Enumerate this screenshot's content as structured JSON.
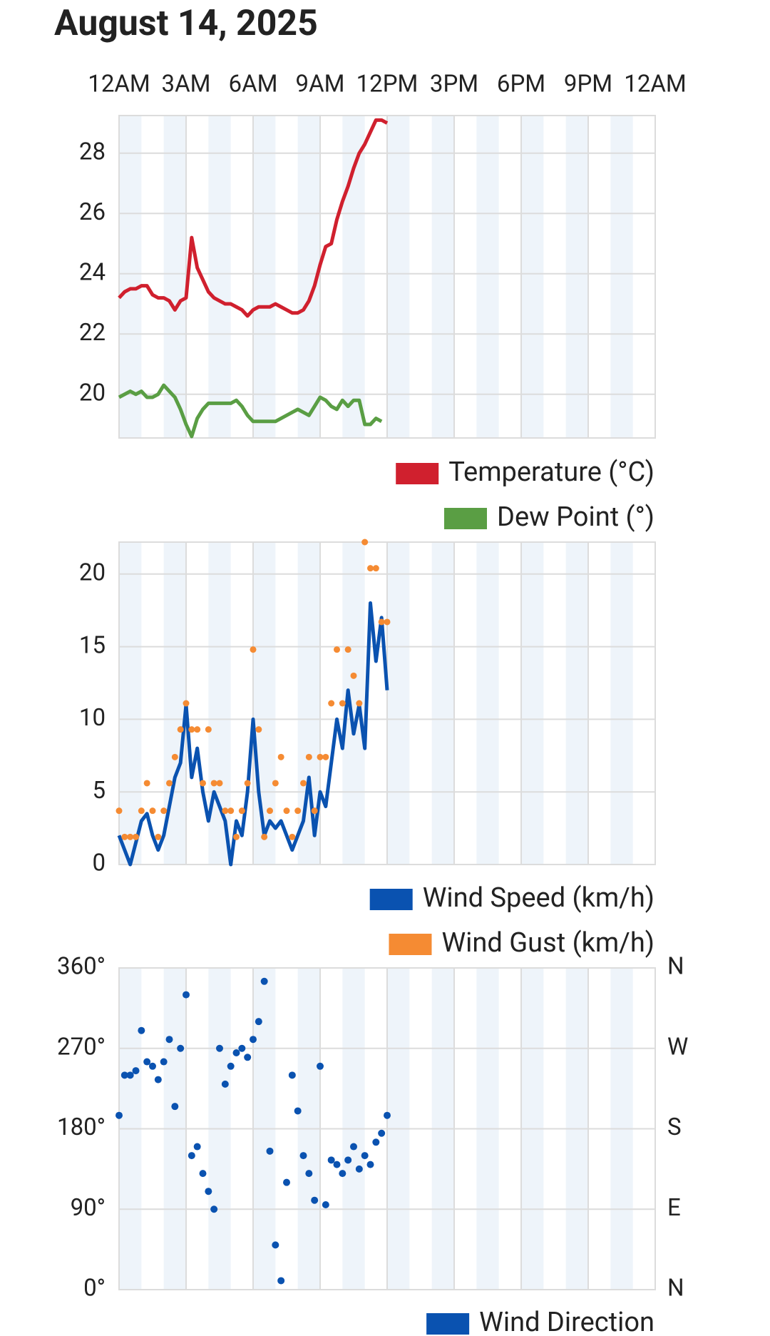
{
  "title": "August 14, 2025",
  "chart_data": [
    {
      "type": "line",
      "xlim": [
        0,
        24
      ],
      "xticks": [
        {
          "value": 0,
          "label": "12AM"
        },
        {
          "value": 3,
          "label": "3AM"
        },
        {
          "value": 6,
          "label": "6AM"
        },
        {
          "value": 9,
          "label": "9AM"
        },
        {
          "value": 12,
          "label": "12PM"
        },
        {
          "value": 15,
          "label": "3PM"
        },
        {
          "value": 18,
          "label": "6PM"
        },
        {
          "value": 21,
          "label": "9PM"
        },
        {
          "value": 24,
          "label": "12AM"
        }
      ],
      "ylim": [
        18.55,
        29.25
      ],
      "yticks": [
        20,
        22,
        24,
        26,
        28
      ],
      "grid": true,
      "x": [
        0,
        0.25,
        0.5,
        0.75,
        1,
        1.25,
        1.5,
        1.75,
        2,
        2.25,
        2.5,
        2.75,
        3,
        3.25,
        3.5,
        3.75,
        4,
        4.25,
        4.5,
        4.75,
        5,
        5.25,
        5.5,
        5.75,
        6,
        6.25,
        6.5,
        6.75,
        7,
        7.25,
        7.5,
        7.75,
        8,
        8.25,
        8.5,
        8.75,
        9,
        9.25,
        9.5,
        9.75,
        10,
        10.25,
        10.5,
        10.75,
        11,
        11.25,
        11.5,
        11.75,
        12
      ],
      "series": [
        {
          "name": "Temperature (°C)",
          "color": "#d0202e",
          "values": [
            23.2,
            23.4,
            23.5,
            23.5,
            23.6,
            23.6,
            23.3,
            23.2,
            23.2,
            23.1,
            22.8,
            23.1,
            23.2,
            25.2,
            24.2,
            23.8,
            23.4,
            23.2,
            23.1,
            23.0,
            23.0,
            22.9,
            22.8,
            22.6,
            22.8,
            22.9,
            22.9,
            22.9,
            23.0,
            22.9,
            22.8,
            22.7,
            22.7,
            22.8,
            23.1,
            23.6,
            24.3,
            24.9,
            25.0,
            25.8,
            26.4,
            26.9,
            27.5,
            28.0,
            28.3,
            28.7,
            29.1,
            29.1,
            29.0
          ]
        },
        {
          "name": "Dew Point (°)",
          "color": "#5a9e44",
          "values": [
            19.9,
            20.0,
            20.1,
            20.0,
            20.1,
            19.9,
            19.9,
            20.0,
            20.3,
            20.1,
            19.9,
            19.5,
            19.0,
            18.6,
            19.2,
            19.5,
            19.7,
            19.7,
            19.7,
            19.7,
            19.7,
            19.8,
            19.6,
            19.3,
            19.1,
            19.1,
            19.1,
            19.1,
            19.1,
            19.2,
            19.3,
            19.4,
            19.5,
            19.4,
            19.3,
            19.6,
            19.9,
            19.8,
            19.6,
            19.5,
            19.8,
            19.6,
            19.8,
            19.8,
            19.0,
            19.0,
            19.2,
            19.1,
            null
          ]
        }
      ]
    },
    {
      "type": "line",
      "xlim": [
        0,
        24
      ],
      "xticks": [
        0,
        3,
        6,
        9,
        12,
        15,
        18,
        21,
        24
      ],
      "ylim": [
        0,
        22.2
      ],
      "yticks": [
        0,
        5,
        10,
        15,
        20
      ],
      "grid": true,
      "x": [
        0,
        0.25,
        0.5,
        0.75,
        1,
        1.25,
        1.5,
        1.75,
        2,
        2.25,
        2.5,
        2.75,
        3,
        3.25,
        3.5,
        3.75,
        4,
        4.25,
        4.5,
        4.75,
        5,
        5.25,
        5.5,
        5.75,
        6,
        6.25,
        6.5,
        6.75,
        7,
        7.25,
        7.5,
        7.75,
        8,
        8.25,
        8.5,
        8.75,
        9,
        9.25,
        9.5,
        9.75,
        10,
        10.25,
        10.5,
        10.75,
        11,
        11.25,
        11.5,
        11.75,
        12
      ],
      "series": [
        {
          "name": "Wind Speed (km/h)",
          "color": "#0a52b0",
          "mark": "line",
          "values": [
            2,
            1,
            0,
            1.5,
            3,
            3.5,
            2,
            1,
            2,
            4,
            6,
            7,
            11,
            6,
            8,
            5,
            3,
            5,
            4,
            3,
            0,
            3,
            2,
            5,
            10,
            5,
            2,
            3,
            2.5,
            3,
            2,
            1,
            2,
            3,
            6,
            2,
            5,
            4,
            7,
            10,
            8,
            12,
            9,
            11,
            8,
            18,
            14,
            17,
            12
          ]
        },
        {
          "name": "Wind Gust (km/h)",
          "color": "#f58b33",
          "mark": "dot",
          "values": [
            3.7,
            1.9,
            1.9,
            1.9,
            3.7,
            5.6,
            3.7,
            1.9,
            3.7,
            5.6,
            7.4,
            9.3,
            11.1,
            9.3,
            9.3,
            5.6,
            9.3,
            5.6,
            5.6,
            3.7,
            3.7,
            1.9,
            3.7,
            5.6,
            14.8,
            9.3,
            1.9,
            3.7,
            5.6,
            7.4,
            3.7,
            1.9,
            3.7,
            5.6,
            7.4,
            3.7,
            7.4,
            7.4,
            11.1,
            14.8,
            11.1,
            14.8,
            13,
            11.1,
            22.2,
            20.4,
            20.4,
            16.7,
            16.7
          ]
        }
      ]
    },
    {
      "type": "scatter",
      "xlim": [
        0,
        24
      ],
      "xticks": [
        0,
        3,
        6,
        9,
        12,
        15,
        18,
        21,
        24
      ],
      "ylim": [
        0,
        360
      ],
      "yticks": [
        {
          "value": 0,
          "label": "0°"
        },
        {
          "value": 90,
          "label": "90°"
        },
        {
          "value": 180,
          "label": "180°"
        },
        {
          "value": 270,
          "label": "270°"
        },
        {
          "value": 360,
          "label": "360°"
        }
      ],
      "y2lim": [
        0,
        360
      ],
      "y2ticks": [
        {
          "value": 0,
          "label": "N"
        },
        {
          "value": 90,
          "label": "E"
        },
        {
          "value": 180,
          "label": "S"
        },
        {
          "value": 270,
          "label": "W"
        },
        {
          "value": 360,
          "label": "N"
        }
      ],
      "grid": true,
      "x": [
        0,
        0.25,
        0.5,
        0.75,
        1,
        1.25,
        1.5,
        1.75,
        2,
        2.25,
        2.5,
        2.75,
        3,
        3.25,
        3.5,
        3.75,
        4,
        4.25,
        4.5,
        4.75,
        5,
        5.25,
        5.5,
        5.75,
        6,
        6.25,
        6.5,
        6.75,
        7,
        7.25,
        7.5,
        7.75,
        8,
        8.25,
        8.5,
        8.75,
        9,
        9.25,
        9.5,
        9.75,
        10,
        10.25,
        10.5,
        10.75,
        11,
        11.25,
        11.5,
        11.75,
        12
      ],
      "series": [
        {
          "name": "Wind Direction",
          "color": "#0a52b0",
          "values": [
            195,
            240,
            240,
            245,
            290,
            255,
            250,
            235,
            255,
            280,
            205,
            270,
            330,
            150,
            160,
            130,
            110,
            90,
            270,
            230,
            250,
            265,
            270,
            260,
            280,
            300,
            345,
            155,
            50,
            10,
            120,
            240,
            200,
            150,
            130,
            100,
            250,
            95,
            145,
            140,
            130,
            145,
            160,
            135,
            150,
            140,
            165,
            175,
            195
          ]
        }
      ]
    }
  ]
}
